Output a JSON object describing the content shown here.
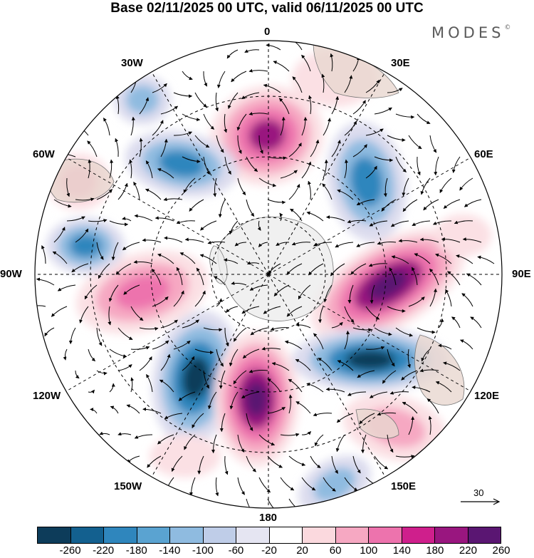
{
  "title": "Base 02/11/2025 00 UTC, valid 06/11/2025 00 UTC",
  "brand": {
    "name": "MODES",
    "mark": "©"
  },
  "longitude_labels": {
    "top": "0",
    "top_right": "30E",
    "upper_right": "60E",
    "right": "90E",
    "lower_right": "120E",
    "bottom_right": "150E",
    "bottom": "180",
    "bottom_left": "150W",
    "lower_left": "120W",
    "left": "90W",
    "upper_left": "60W",
    "top_left": "30W"
  },
  "reference_vector": {
    "label": "30"
  },
  "colorbar": {
    "colors": [
      "#0d3c5a",
      "#13608f",
      "#2f86bd",
      "#5aa3d1",
      "#8fbbe0",
      "#bfcde8",
      "#e5e5f2",
      "#ffffff",
      "#fbd9de",
      "#f6a8c2",
      "#ed73ad",
      "#cf1f8c",
      "#99167f",
      "#5a1672"
    ],
    "labels": [
      "-260",
      "-220",
      "-180",
      "-140",
      "-100",
      "-60",
      "-20",
      "20",
      "60",
      "100",
      "140",
      "180",
      "220",
      "260"
    ]
  },
  "map_colors": {
    "neg_strong": "#0d3c5a",
    "neg_mid": "#2f86bd",
    "neg_light": "#8fbbe0",
    "neg_faint": "#dcdcee",
    "pos_faint": "#fbe0e4",
    "pos_light": "#f6a8c2",
    "pos_mid": "#ed73ad",
    "pos_strong": "#99167f",
    "pos_max": "#5a1672",
    "land": "#e8d7d0",
    "antarctica": "#ececec"
  }
}
